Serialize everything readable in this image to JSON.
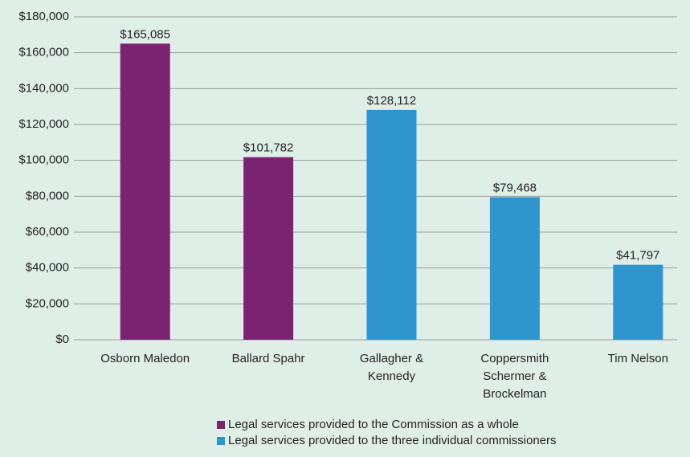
{
  "chart_data": {
    "type": "bar",
    "categories": [
      "Osborn Maledon",
      "Ballard Spahr",
      "Gallagher & Kennedy",
      "Coppersmith Schermer & Brockelman",
      "Tim Nelson"
    ],
    "series": [
      {
        "name": "Legal services provided to the Commission as a whole",
        "color": "#7b2272",
        "values": [
          165085,
          101782,
          null,
          null,
          null
        ],
        "value_labels": [
          "$165,085",
          "$101,782",
          null,
          null,
          null
        ]
      },
      {
        "name": "Legal services provided to the three individual commissioners",
        "color": "#2e96cd",
        "values": [
          null,
          null,
          128112,
          79468,
          41797
        ],
        "value_labels": [
          null,
          null,
          "$128,112",
          "$79,468",
          "$41,797"
        ]
      }
    ],
    "ylim": [
      0,
      180000
    ],
    "yticks": [
      {
        "value": 0,
        "label": "$0"
      },
      {
        "value": 20000,
        "label": "$20,000"
      },
      {
        "value": 40000,
        "label": "$40,000"
      },
      {
        "value": 60000,
        "label": "$60,000"
      },
      {
        "value": 80000,
        "label": "$80,000"
      },
      {
        "value": 100000,
        "label": "$100,000"
      },
      {
        "value": 120000,
        "label": "$120,000"
      },
      {
        "value": 140000,
        "label": "$140,000"
      },
      {
        "value": 160000,
        "label": "$160,000"
      },
      {
        "value": 180000,
        "label": "$180,000"
      }
    ],
    "grid": true,
    "legend": "bottom"
  }
}
